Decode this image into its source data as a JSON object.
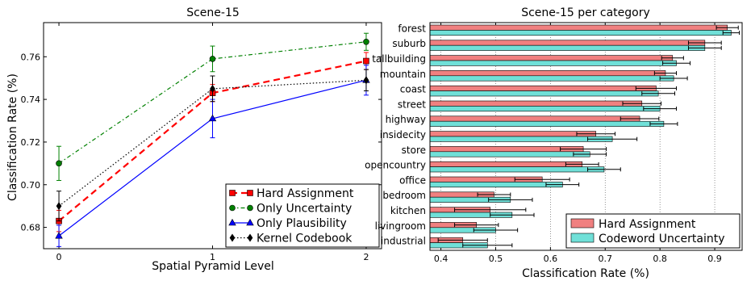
{
  "chart_data": [
    {
      "type": "line",
      "title": "Scene-15",
      "xlabel": "Spatial Pyramid Level",
      "ylabel": "Classification Rate (%)",
      "x": [
        0,
        1,
        2
      ],
      "xticks": [
        "0",
        "1",
        "2"
      ],
      "ylim": [
        0.67,
        0.776
      ],
      "yticks": [
        "0.68",
        "0.70",
        "0.72",
        "0.74",
        "0.76"
      ],
      "legend_position": "lower-right",
      "series": [
        {
          "name": "Hard Assignment",
          "values": [
            0.683,
            0.743,
            0.758
          ],
          "errors": [
            0.005,
            0.004,
            0.004
          ],
          "color": "#ff0000",
          "dash": "8,5",
          "marker": "square",
          "width": 2.2
        },
        {
          "name": "Only Uncertainty",
          "values": [
            0.71,
            0.759,
            0.767
          ],
          "errors": [
            0.008,
            0.006,
            0.004
          ],
          "color": "#008000",
          "dash": "5,3,1.5,3",
          "marker": "circle",
          "width": 1.2
        },
        {
          "name": "Only Plausibility",
          "values": [
            0.676,
            0.731,
            0.749
          ],
          "errors": [
            0.005,
            0.009,
            0.007
          ],
          "color": "#0000ff",
          "dash": "",
          "marker": "triangle",
          "width": 1.2
        },
        {
          "name": "Kernel Codebook",
          "values": [
            0.69,
            0.745,
            0.749
          ],
          "errors": [
            0.007,
            0.006,
            0.005
          ],
          "color": "#000000",
          "dash": "1.5,2.5",
          "marker": "diamond",
          "width": 1.2
        }
      ]
    },
    {
      "type": "bar",
      "orientation": "horizontal",
      "title": "Scene-15 per category",
      "xlabel": "Classification Rate (%)",
      "ylabel": "",
      "xlim": [
        0.38,
        0.95
      ],
      "xticks": [
        "0.4",
        "0.5",
        "0.6",
        "0.7",
        "0.8",
        "0.9"
      ],
      "grid": "vertical dotted",
      "legend_position": "lower-right",
      "categories": [
        "forest",
        "suburb",
        "tallbuilding",
        "mountain",
        "coast",
        "street",
        "highway",
        "insidecity",
        "store",
        "opencountry",
        "office",
        "bedroom",
        "kitchen",
        "livingroom",
        "industrial"
      ],
      "series": [
        {
          "name": "Hard Assignment",
          "color": "#f08080",
          "values": [
            0.923,
            0.882,
            0.823,
            0.81,
            0.793,
            0.767,
            0.763,
            0.683,
            0.66,
            0.658,
            0.585,
            0.497,
            0.49,
            0.465,
            0.44
          ],
          "errors": [
            0.02,
            0.03,
            0.02,
            0.02,
            0.037,
            0.035,
            0.035,
            0.035,
            0.042,
            0.03,
            0.05,
            0.03,
            0.065,
            0.04,
            0.045
          ]
        },
        {
          "name": "Codeword Uncertainty",
          "color": "#70e0d8",
          "values": [
            0.93,
            0.882,
            0.83,
            0.825,
            0.797,
            0.8,
            0.807,
            0.713,
            0.672,
            0.698,
            0.622,
            0.527,
            0.53,
            0.5,
            0.485
          ],
          "errors": [
            0.015,
            0.03,
            0.025,
            0.025,
            0.03,
            0.03,
            0.025,
            0.045,
            0.03,
            0.03,
            0.03,
            0.04,
            0.04,
            0.04,
            0.045
          ]
        }
      ]
    }
  ]
}
